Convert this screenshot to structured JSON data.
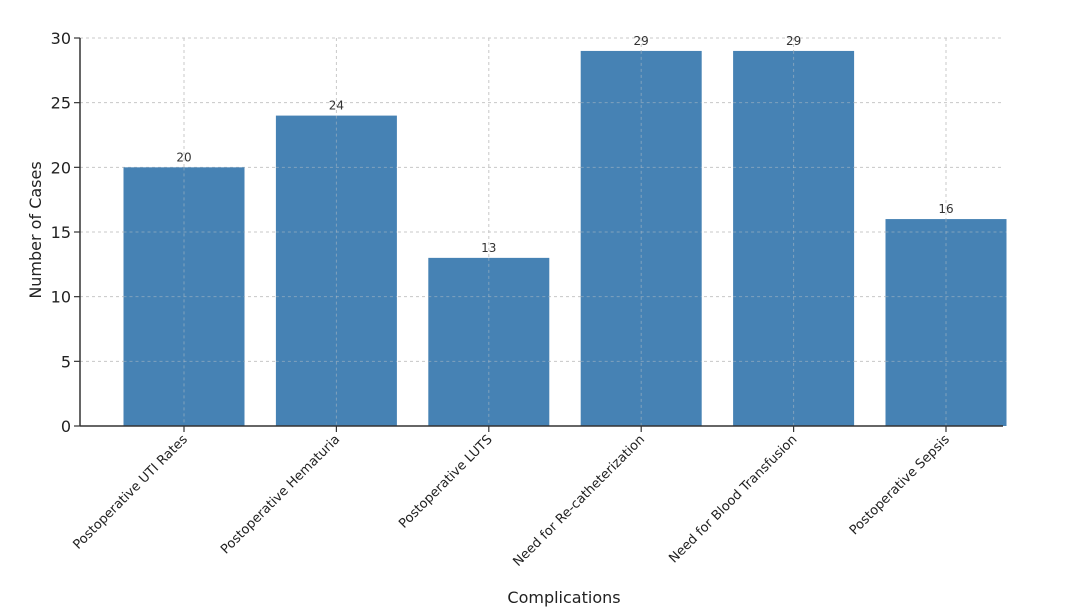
{
  "chart_data": {
    "type": "bar",
    "title": "",
    "xlabel": "Complications",
    "ylabel": "Number of Cases",
    "categories": [
      "Postoperative UTI Rates",
      "Postoperative Hematuria",
      "Postoperative LUTS",
      "Need for Re-catheterization",
      "Need for Blood Transfusion",
      "Postoperative Sepsis"
    ],
    "values": [
      20,
      24,
      13,
      29,
      29,
      16
    ],
    "ylim": [
      0,
      30
    ],
    "yticks": [
      0,
      5,
      10,
      15,
      20,
      25,
      30
    ],
    "grid": true,
    "bar_color": "#4682b4",
    "data_labels": true
  }
}
